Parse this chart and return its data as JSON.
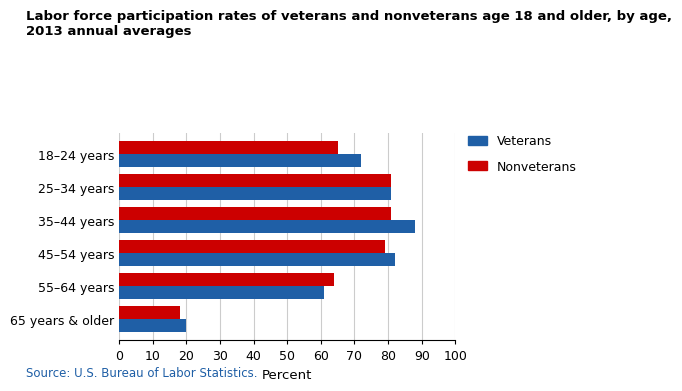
{
  "title_line1": "Labor force participation rates of veterans and nonveterans age 18 and older, by age,",
  "title_line2": "2013 annual averages",
  "categories": [
    "18–24 years",
    "25–34 years",
    "35–44 years",
    "45–54 years",
    "55–64 years",
    "65 years & older"
  ],
  "veterans": [
    72.0,
    81.0,
    88.0,
    82.0,
    61.0,
    20.0
  ],
  "nonveterans": [
    65.0,
    81.0,
    81.0,
    79.0,
    64.0,
    18.0
  ],
  "veteran_color": "#1F5FA6",
  "nonveteran_color": "#CC0000",
  "xlabel": "Percent",
  "xlim": [
    0,
    100
  ],
  "xticks": [
    0,
    10,
    20,
    30,
    40,
    50,
    60,
    70,
    80,
    90,
    100
  ],
  "source": "Source: U.S. Bureau of Labor Statistics.",
  "legend_labels": [
    "Veterans",
    "Nonveterans"
  ],
  "bar_height": 0.38,
  "title_fontsize": 9.5,
  "axis_label_fontsize": 9.5,
  "tick_fontsize": 9,
  "legend_fontsize": 9,
  "source_fontsize": 8.5,
  "background_color": "#FFFFFF",
  "grid_color": "#CCCCCC"
}
